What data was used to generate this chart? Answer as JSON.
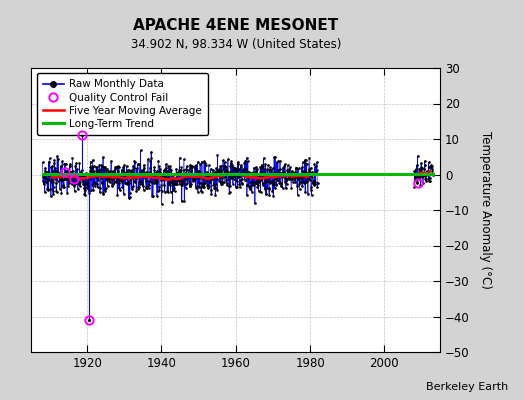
{
  "title": "APACHE 4ENE MESONET",
  "subtitle": "34.902 N, 98.334 W (United States)",
  "ylabel": "Temperature Anomaly (°C)",
  "attribution": "Berkeley Earth",
  "xlim": [
    1905,
    2015
  ],
  "ylim": [
    -50,
    30
  ],
  "yticks": [
    -50,
    -40,
    -30,
    -20,
    -10,
    0,
    10,
    20,
    30
  ],
  "xticks": [
    1920,
    1940,
    1960,
    1980,
    2000
  ],
  "background_color": "#d3d3d3",
  "plot_bg_color": "#ffffff",
  "grid_color": "#aaaaaa",
  "data_start_year": 1908,
  "data_end_year": 1982,
  "data_start_year2": 2008,
  "data_end_year2": 2013,
  "noise_std": 2.5,
  "noise_std2": 2.0,
  "outlier1_year": 1918.5,
  "outlier1_val": 11.0,
  "outlier2_year": 1920.5,
  "outlier2_val": -41.0,
  "qc_fail_points": [
    [
      1914.0,
      0.8
    ],
    [
      1916.5,
      -1.2
    ],
    [
      1918.5,
      11.0
    ],
    [
      1920.5,
      -41.0
    ],
    [
      2009.0,
      -2.5
    ]
  ],
  "trend_y": 0.15,
  "legend_labels": [
    "Raw Monthly Data",
    "Quality Control Fail",
    "Five Year Moving Average",
    "Long-Term Trend"
  ],
  "legend_colors": [
    "#0000ff",
    "#ff00ff",
    "#ff0000",
    "#00bb00"
  ]
}
